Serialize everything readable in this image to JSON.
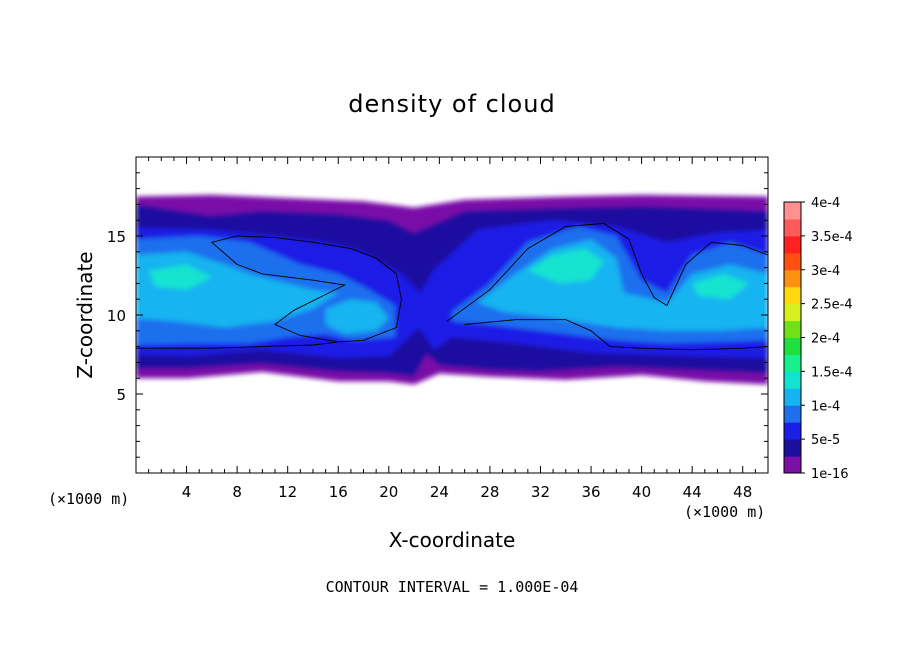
{
  "chart_data": {
    "type": "heatmap",
    "title": "density of cloud",
    "xlabel": "X-coordinate",
    "ylabel": "Z-coordinate",
    "x_unit_label": "(×1000 m)",
    "z_unit_label": "(×1000 m)",
    "footer": "CONTOUR INTERVAL = 1.000E-04",
    "xlim": [
      0,
      50
    ],
    "ylim": [
      0,
      20
    ],
    "x_ticks": [
      4,
      8,
      12,
      16,
      20,
      24,
      28,
      32,
      36,
      40,
      44,
      48
    ],
    "y_ticks": [
      5,
      10,
      15
    ],
    "x_tick_labels": [
      "4",
      "8",
      "12",
      "16",
      "20",
      "24",
      "28",
      "32",
      "36",
      "40",
      "44",
      "48"
    ],
    "y_tick_labels": [
      "5",
      "10",
      "15"
    ],
    "colorbar": {
      "labels": [
        "1e-16",
        "5e-5",
        "1e-4",
        "1.5e-4",
        "2e-4",
        "2.5e-4",
        "3e-4",
        "3.5e-4",
        "4e-4"
      ],
      "colors": [
        "#7a10a8",
        "#1c0fa0",
        "#1a1ee6",
        "#1d6fee",
        "#15b4f0",
        "#12e3d0",
        "#18f08c",
        "#20e040",
        "#70e018",
        "#d8f020",
        "#ffd810",
        "#ff9010",
        "#ff5010",
        "#ff2020",
        "#ff5a5a",
        "#ff9090"
      ]
    },
    "cloud_layer": {
      "bottom_z_approx": 6,
      "top_z_approx": 17.5
    },
    "contour_level": "1e-4",
    "grid": false,
    "legend_placement": "right"
  }
}
